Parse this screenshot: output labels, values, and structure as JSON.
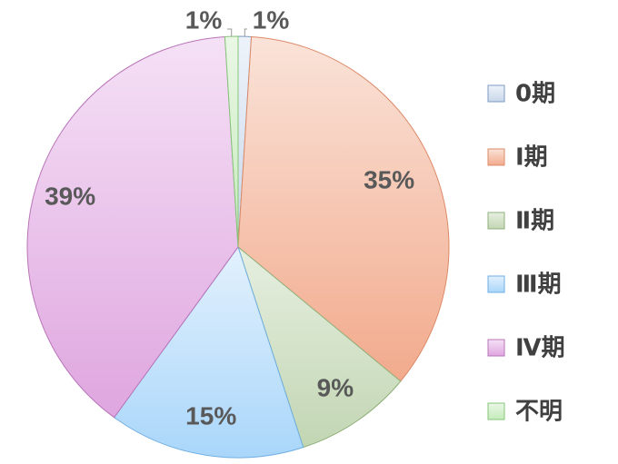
{
  "chart_data": {
    "type": "pie",
    "title": "",
    "legend_position": "right",
    "slices": [
      {
        "label": "0期",
        "value": 1,
        "display": "1%",
        "fill_start": "#eef3fa",
        "fill_end": "#c8d7ea",
        "stroke": "#7d9ac3"
      },
      {
        "label": "Ⅰ期",
        "value": 35,
        "display": "35%",
        "fill_start": "#fae3d9",
        "fill_end": "#f2aa8c",
        "stroke": "#dc8a68"
      },
      {
        "label": "Ⅱ期",
        "value": 9,
        "display": "9%",
        "fill_start": "#e6efe0",
        "fill_end": "#c2d6b3",
        "stroke": "#8fb07a"
      },
      {
        "label": "Ⅲ期",
        "value": 15,
        "display": "15%",
        "fill_start": "#e3f1fd",
        "fill_end": "#a9d6fa",
        "stroke": "#6faee3"
      },
      {
        "label": "Ⅳ期",
        "value": 39,
        "display": "39%",
        "fill_start": "#f5e1f6",
        "fill_end": "#dfa6df",
        "stroke": "#b874b8"
      },
      {
        "label": "不明",
        "value": 1,
        "display": "1%",
        "fill_start": "#eaf7e6",
        "fill_end": "#c5ebbb",
        "stroke": "#86c57a"
      }
    ]
  }
}
